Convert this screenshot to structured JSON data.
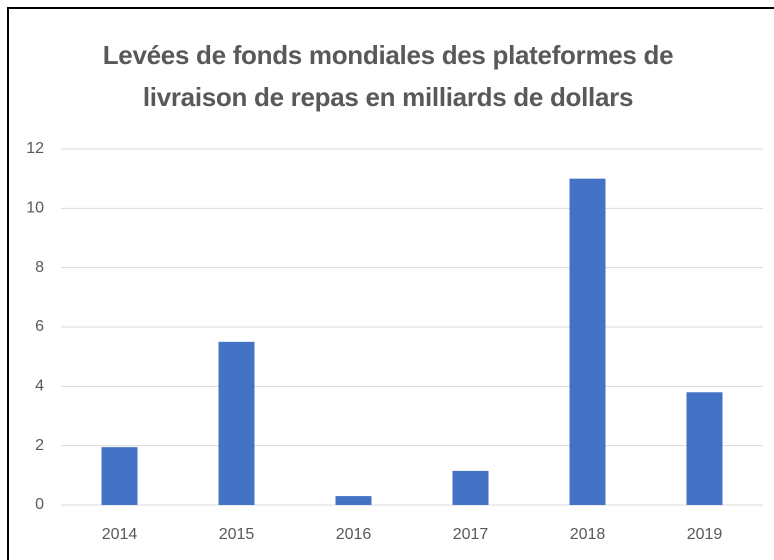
{
  "chart_data": {
    "type": "bar",
    "title": "Levées de fonds mondiales des plateformes de livraison de repas en milliards de dollars",
    "categories": [
      "2014",
      "2015",
      "2016",
      "2017",
      "2018",
      "2019"
    ],
    "values": [
      1.95,
      5.5,
      0.3,
      1.15,
      11,
      3.8
    ],
    "color": "#4472c4",
    "ylim": [
      0,
      12
    ],
    "yticks": [
      0,
      2,
      4,
      6,
      8,
      10,
      12
    ],
    "grid": true
  }
}
